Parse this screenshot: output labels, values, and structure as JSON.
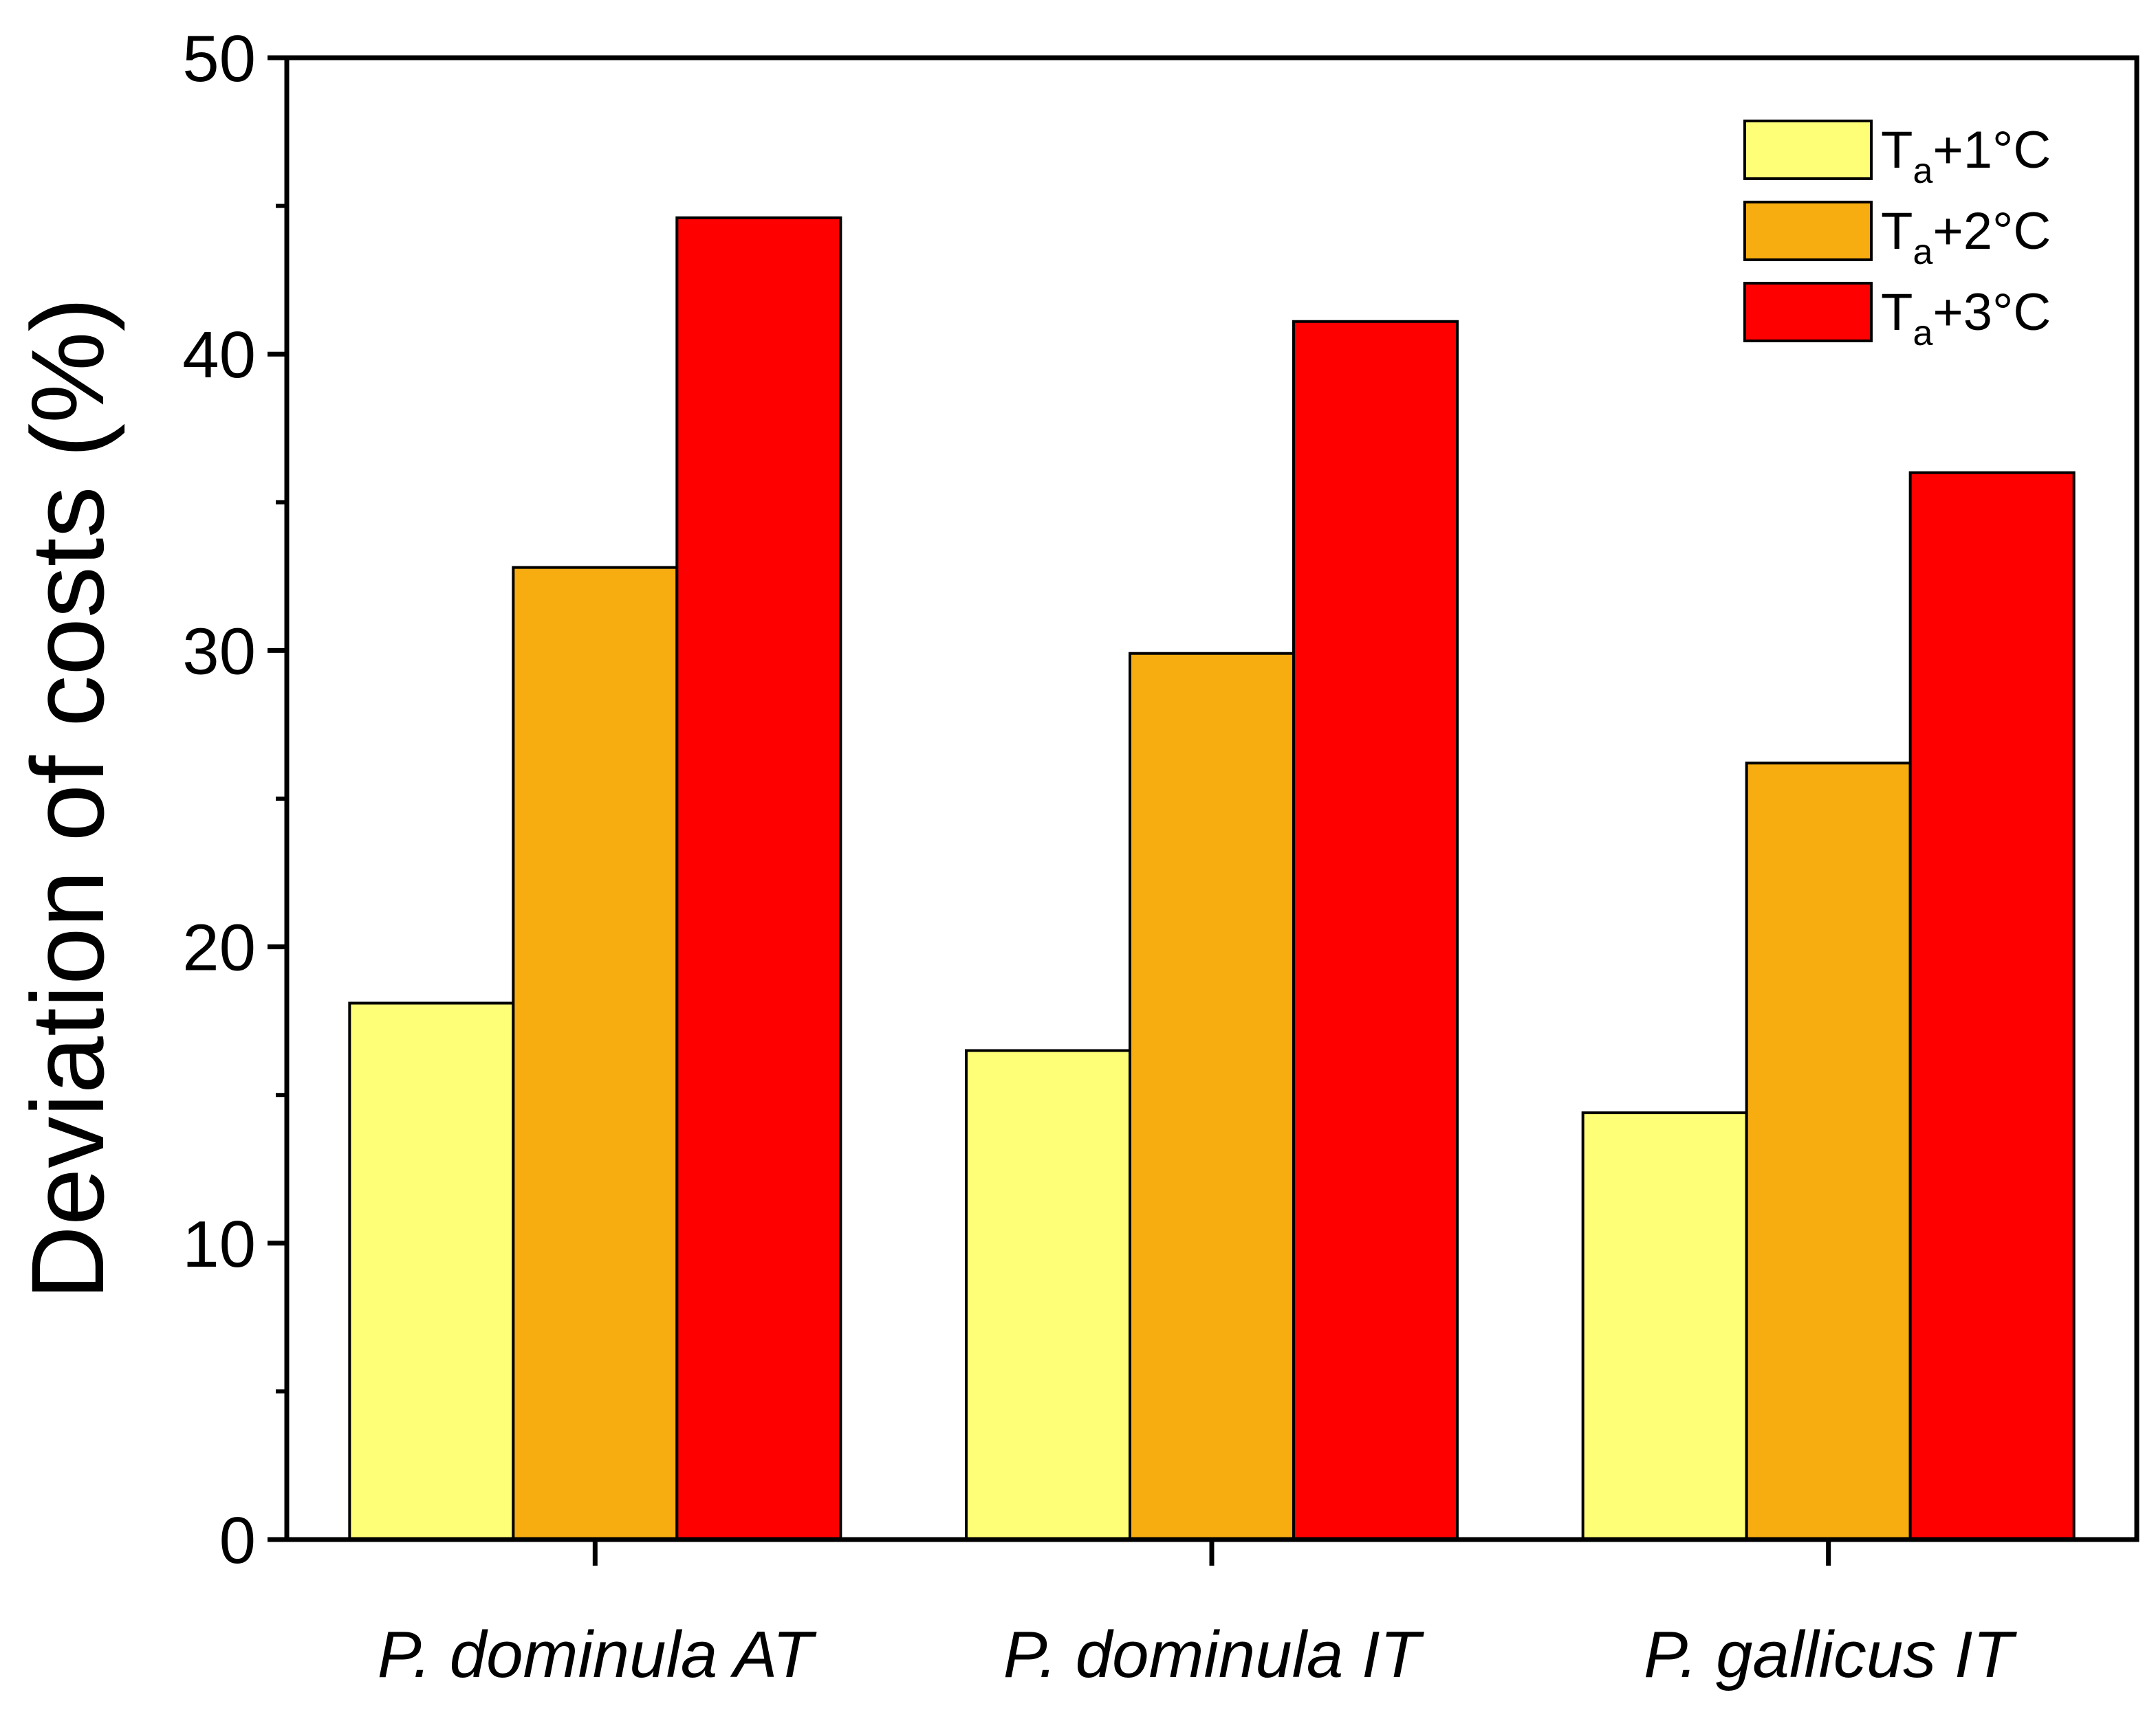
{
  "chart_data": {
    "type": "bar",
    "title": "",
    "xlabel": "",
    "ylabel": "Deviation of costs (%)",
    "ylim": [
      0,
      50
    ],
    "yticks": [
      "0",
      "10",
      "20",
      "30",
      "40",
      "50"
    ],
    "grid": false,
    "legend_position": "top-right",
    "categories": [
      "P. dominula AT",
      "P. dominula IT",
      "P. gallicus IT"
    ],
    "series": [
      {
        "name": "Ta+1°C",
        "name_main": "T",
        "name_sub": "a",
        "name_rest": "+1°C",
        "color": "#ffff77",
        "values": [
          18.1,
          16.5,
          14.4
        ]
      },
      {
        "name": "Ta+2°C",
        "name_main": "T",
        "name_sub": "a",
        "name_rest": "+2°C",
        "color": "#f7ac10",
        "values": [
          32.8,
          29.9,
          26.2
        ]
      },
      {
        "name": "Ta+3°C",
        "name_main": "T",
        "name_sub": "a",
        "name_rest": "+3°C",
        "color": "#ff0000",
        "values": [
          44.6,
          41.1,
          36.0
        ]
      }
    ]
  }
}
